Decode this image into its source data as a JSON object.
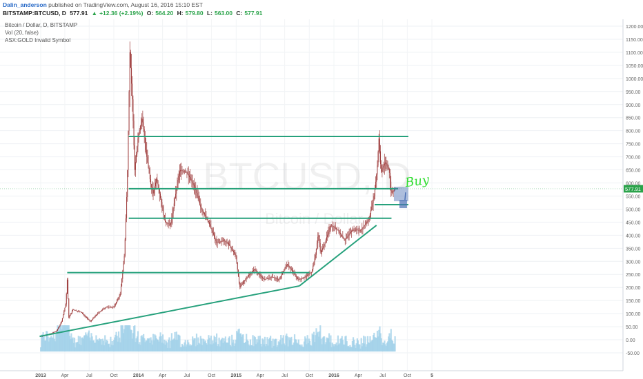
{
  "header": {
    "author": "Dalin_anderson",
    "published_text": "published on TradingView.com, August 16, 2016 15:10 EST",
    "symbol": "BITSTAMP:BTCUSD, D",
    "last": "577.91",
    "change_arrow": "▲",
    "change": "+12.36 (+2.19%)",
    "o_label": "O:",
    "o_value": "564.20",
    "h_label": "H:",
    "h_value": "579.80",
    "l_label": "L:",
    "l_value": "563.00",
    "c_label": "C:",
    "c_value": "577.91"
  },
  "info_lines": {
    "title": "Bitcoin / Dollar, D, BITSTAMP",
    "volume": "Vol (20, false)",
    "invalid": "ASX:GOLD Invalid Symbol"
  },
  "watermark": {
    "symbol": "BTCUSD, D",
    "name": "Bitcoin / Dollar"
  },
  "annotation_text": "Buy",
  "price_tag": "577.91",
  "colors": {
    "trendline": "#26a17c",
    "candle": "#9a3434",
    "volume": "#9ecfe8",
    "buy_text": "#33dd33",
    "buy_zone": "#4a6fb4",
    "price_tag": "#2aa34a"
  },
  "chart_data": {
    "type": "candlestick",
    "title": "Bitcoin / Dollar, D, BITSTAMP",
    "x_ticks": [
      "2013",
      "Apr",
      "Jul",
      "Oct",
      "2014",
      "Apr",
      "Jul",
      "Oct",
      "2015",
      "Apr",
      "Jul",
      "Oct",
      "2016",
      "Apr",
      "Jul",
      "Oct",
      "5"
    ],
    "y_ticks": [
      "1200.00",
      "1150.00",
      "1100.00",
      "1050.00",
      "1000.00",
      "950.00",
      "900.00",
      "850.00",
      "800.00",
      "750.00",
      "700.00",
      "650.00",
      "600.00",
      "550.00",
      "500.00",
      "450.00",
      "400.00",
      "350.00",
      "300.00",
      "250.00",
      "200.00",
      "150.00",
      "100.00",
      "50.00",
      "0.00",
      "-50.00"
    ],
    "ylim": [
      -60,
      1230
    ],
    "price_series": {
      "name": "BTCUSD",
      "x": [
        "2013-01-01",
        "2013-02-01",
        "2013-03-01",
        "2013-03-20",
        "2013-04-05",
        "2013-04-10",
        "2013-04-16",
        "2013-05-01",
        "2013-06-01",
        "2013-07-05",
        "2013-08-01",
        "2013-09-01",
        "2013-10-01",
        "2013-10-25",
        "2013-11-10",
        "2013-11-20",
        "2013-11-30",
        "2013-12-10",
        "2013-12-18",
        "2013-12-31",
        "2014-01-15",
        "2014-02-01",
        "2014-02-15",
        "2014-02-25",
        "2014-03-10",
        "2014-04-10",
        "2014-05-01",
        "2014-05-25",
        "2014-06-05",
        "2014-07-01",
        "2014-08-01",
        "2014-08-20",
        "2014-09-20",
        "2014-10-20",
        "2014-11-15",
        "2014-12-01",
        "2014-12-31",
        "2015-01-14",
        "2015-02-10",
        "2015-03-10",
        "2015-04-15",
        "2015-05-15",
        "2015-06-10",
        "2015-07-10",
        "2015-08-01",
        "2015-08-20",
        "2015-09-15",
        "2015-10-10",
        "2015-10-25",
        "2015-11-04",
        "2015-11-12",
        "2015-12-01",
        "2015-12-20",
        "2016-01-15",
        "2016-02-10",
        "2016-03-10",
        "2016-04-10",
        "2016-05-10",
        "2016-05-30",
        "2016-06-10",
        "2016-06-17",
        "2016-06-25",
        "2016-07-10",
        "2016-07-25",
        "2016-08-02",
        "2016-08-16"
      ],
      "close": [
        13,
        20,
        33,
        70,
        140,
        230,
        85,
        115,
        105,
        70,
        100,
        125,
        125,
        175,
        330,
        600,
        1100,
        900,
        650,
        780,
        850,
        700,
        600,
        560,
        620,
        450,
        440,
        590,
        650,
        640,
        580,
        510,
        450,
        370,
        380,
        370,
        320,
        200,
        240,
        270,
        230,
        240,
        230,
        290,
        260,
        230,
        240,
        260,
        330,
        410,
        330,
        380,
        440,
        420,
        380,
        420,
        420,
        460,
        550,
        650,
        770,
        640,
        680,
        650,
        560,
        577.91
      ]
    },
    "volume_series": {
      "name": "Vol (20, false)",
      "note": "volume bars in lower pane, plotted at approximately 0–80 on the price scale"
    },
    "annotations": [
      {
        "type": "horizontal_line",
        "price": 778,
        "from": "2013-11-26",
        "to": "2016-10-05"
      },
      {
        "type": "horizontal_line",
        "price": 578,
        "from": "2013-11-26",
        "to": "2016-08-28"
      },
      {
        "type": "horizontal_line",
        "price": 517,
        "from": "2016-06-01",
        "to": "2016-10-05"
      },
      {
        "type": "horizontal_line",
        "price": 465,
        "from": "2013-11-26",
        "to": "2016-08-03"
      },
      {
        "type": "horizontal_line",
        "price": 257,
        "from": "2013-04-10",
        "to": "2015-10-02"
      },
      {
        "type": "trend_line",
        "from": [
          "2012-12-28",
          13
        ],
        "to": [
          "2015-08-25",
          206
        ]
      },
      {
        "type": "trend_line",
        "from": [
          "2015-08-25",
          206
        ],
        "to": [
          "2016-06-08",
          438
        ]
      },
      {
        "type": "rectangle",
        "from": [
          "2016-08-12",
          530
        ],
        "to": [
          "2016-10-05",
          585
        ],
        "label": "buy zone"
      },
      {
        "type": "text",
        "text": "Buy",
        "at": [
          "2016-09-25",
          585
        ]
      }
    ]
  }
}
